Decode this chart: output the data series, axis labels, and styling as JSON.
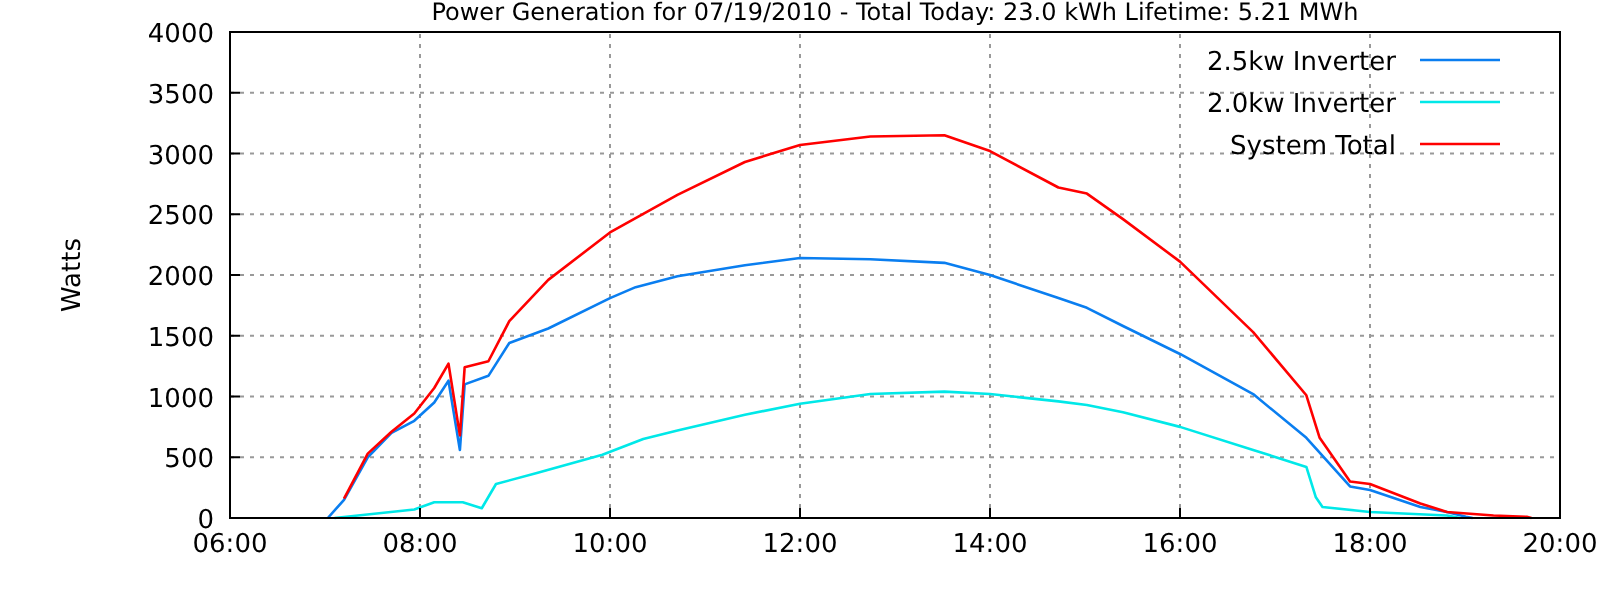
{
  "chart_data": {
    "type": "line",
    "title": "Power Generation for 07/19/2010 - Total Today: 23.0 kWh   Lifetime: 5.21 MWh",
    "ylabel": "Watts",
    "xlim": [
      6,
      20
    ],
    "xticks": [
      {
        "value": 6,
        "label": "06:00"
      },
      {
        "value": 8,
        "label": "08:00"
      },
      {
        "value": 10,
        "label": "10:00"
      },
      {
        "value": 12,
        "label": "12:00"
      },
      {
        "value": 14,
        "label": "14:00"
      },
      {
        "value": 16,
        "label": "16:00"
      },
      {
        "value": 18,
        "label": "18:00"
      },
      {
        "value": 20,
        "label": "20:00"
      }
    ],
    "ylim": [
      0,
      4000
    ],
    "yticks": [
      0,
      500,
      1000,
      1500,
      2000,
      2500,
      3000,
      3500,
      4000
    ],
    "grid": true,
    "legend": "top right",
    "line_style": "solid",
    "marker": "none",
    "series": [
      {
        "name": "2.5kw Inverter",
        "color": "#0a7ef0",
        "x": [
          7.03,
          7.2,
          7.45,
          7.7,
          7.94,
          8.15,
          8.3,
          8.42,
          8.47,
          8.72,
          8.94,
          9.35,
          10.0,
          10.27,
          10.71,
          11.42,
          12.0,
          12.74,
          13.52,
          14.0,
          14.72,
          15.02,
          15.4,
          16.0,
          16.77,
          17.33,
          17.79,
          18.0,
          18.53,
          18.81,
          19.01,
          19.08
        ],
        "values": [
          0,
          150,
          500,
          700,
          800,
          950,
          1130,
          560,
          1100,
          1170,
          1440,
          1560,
          1810,
          1900,
          1990,
          2080,
          2140,
          2130,
          2100,
          2000,
          1810,
          1730,
          1580,
          1350,
          1020,
          660,
          260,
          230,
          90,
          50,
          10,
          0
        ]
      },
      {
        "name": "2.0kw Inverter",
        "color": "#00e8e8",
        "x": [
          7.1,
          7.94,
          8.15,
          8.45,
          8.65,
          8.8,
          9.23,
          9.92,
          10.35,
          10.71,
          11.42,
          12.0,
          12.74,
          13.52,
          14.0,
          14.72,
          15.02,
          15.4,
          16.0,
          16.77,
          17.33,
          17.43,
          17.5,
          18.0,
          18.81,
          18.95
        ],
        "values": [
          0,
          70,
          130,
          130,
          80,
          280,
          370,
          520,
          650,
          720,
          850,
          940,
          1020,
          1040,
          1020,
          960,
          930,
          870,
          750,
          560,
          420,
          170,
          90,
          50,
          20,
          0
        ]
      },
      {
        "name": "System Total",
        "color": "#ff0000",
        "x": [
          7.2,
          7.45,
          7.7,
          7.94,
          8.15,
          8.3,
          8.42,
          8.47,
          8.72,
          8.94,
          9.35,
          10.0,
          10.71,
          11.42,
          12.0,
          12.74,
          13.52,
          14.0,
          14.72,
          15.02,
          15.4,
          16.0,
          16.77,
          17.33,
          17.47,
          17.79,
          18.0,
          18.53,
          18.81,
          19.3,
          19.65,
          19.7
        ],
        "values": [
          160,
          530,
          710,
          860,
          1070,
          1270,
          680,
          1240,
          1290,
          1620,
          1960,
          2350,
          2660,
          2930,
          3070,
          3140,
          3150,
          3020,
          2720,
          2670,
          2460,
          2110,
          1530,
          1010,
          660,
          300,
          280,
          120,
          50,
          20,
          10,
          0
        ]
      }
    ]
  }
}
